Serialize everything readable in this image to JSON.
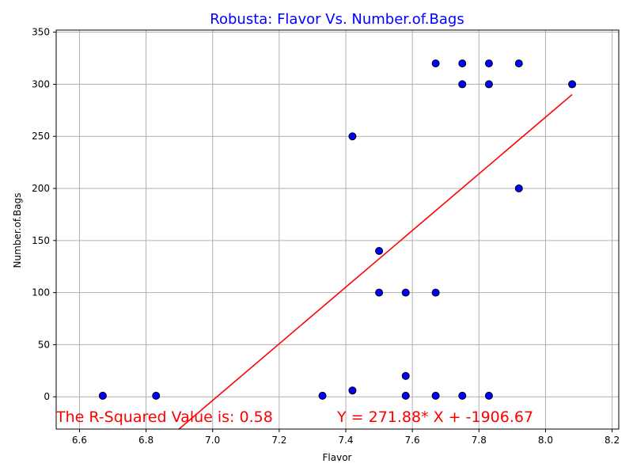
{
  "chart_data": {
    "type": "scatter",
    "title": "Robusta: Flavor Vs. Number.of.Bags",
    "xlabel": "Flavor",
    "ylabel": "Number.of.Bags",
    "xlim": [
      6.53,
      8.22
    ],
    "ylim": [
      -31,
      352
    ],
    "xticks": [
      6.6,
      6.8,
      7.0,
      7.2,
      7.4,
      7.6,
      7.8,
      8.0,
      8.2
    ],
    "xtick_labels": [
      "6.6",
      "6.8",
      "7.0",
      "7.2",
      "7.4",
      "7.6",
      "7.8",
      "8.0",
      "8.2"
    ],
    "yticks": [
      0,
      50,
      100,
      150,
      200,
      250,
      300,
      350
    ],
    "ytick_labels": [
      "0",
      "50",
      "100",
      "150",
      "200",
      "250",
      "300",
      "350"
    ],
    "grid": true,
    "points": [
      {
        "x": 6.67,
        "y": 1
      },
      {
        "x": 6.83,
        "y": 1
      },
      {
        "x": 7.33,
        "y": 1
      },
      {
        "x": 7.42,
        "y": 6
      },
      {
        "x": 7.42,
        "y": 250
      },
      {
        "x": 7.5,
        "y": 140
      },
      {
        "x": 7.5,
        "y": 100
      },
      {
        "x": 7.58,
        "y": 100
      },
      {
        "x": 7.58,
        "y": 20
      },
      {
        "x": 7.58,
        "y": 1
      },
      {
        "x": 7.67,
        "y": 320
      },
      {
        "x": 7.67,
        "y": 100
      },
      {
        "x": 7.67,
        "y": 1
      },
      {
        "x": 7.75,
        "y": 320
      },
      {
        "x": 7.75,
        "y": 300
      },
      {
        "x": 7.75,
        "y": 1
      },
      {
        "x": 7.83,
        "y": 320
      },
      {
        "x": 7.83,
        "y": 300
      },
      {
        "x": 7.83,
        "y": 1
      },
      {
        "x": 7.92,
        "y": 320
      },
      {
        "x": 7.92,
        "y": 200
      },
      {
        "x": 8.08,
        "y": 300
      }
    ],
    "fit_line": {
      "slope": 271.88,
      "intercept": -1906.67,
      "x_range": [
        6.67,
        8.08
      ]
    },
    "annotations": {
      "r_squared": "The R-Squared Value is: 0.58",
      "equation": "Y = 271.88* X + -1906.67"
    },
    "colors": {
      "point_fill": "#0000ff",
      "point_edge": "#000000",
      "line": "#ff0000",
      "title": "#0000ff",
      "annotation": "#ff0000",
      "grid": "#b0b0b0"
    }
  }
}
